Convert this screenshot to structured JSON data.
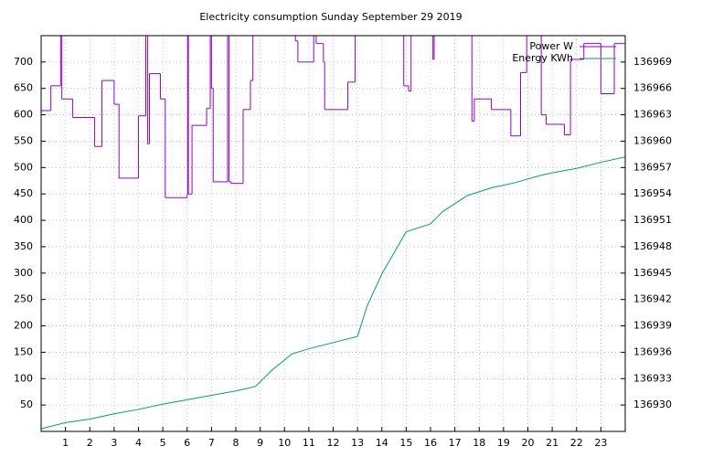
{
  "chart_data": {
    "type": "line",
    "title": "Electricity consumption Sunday September 29 2019",
    "xlim": [
      0,
      24
    ],
    "xticks": [
      1,
      2,
      3,
      4,
      5,
      6,
      7,
      8,
      9,
      10,
      11,
      12,
      13,
      14,
      15,
      16,
      17,
      18,
      19,
      20,
      21,
      22,
      23
    ],
    "ylim": [
      0,
      750
    ],
    "yticks": [
      50,
      100,
      150,
      200,
      250,
      300,
      350,
      400,
      450,
      500,
      550,
      600,
      650,
      700
    ],
    "y2lim": [
      136927,
      136972
    ],
    "y2ticks": [
      136930,
      136933,
      136936,
      136939,
      136942,
      136945,
      136948,
      136951,
      136954,
      136957,
      136960,
      136963,
      136966,
      136969
    ],
    "grid": true,
    "legend": "top-right",
    "series": [
      {
        "name": "Power W",
        "color": "#9400d3",
        "style": "steps",
        "x": [
          0,
          0.4,
          0.8,
          0.85,
          1.3,
          2.2,
          2.5,
          3.0,
          3.2,
          4.0,
          4.3,
          4.38,
          4.45,
          4.9,
          5.1,
          6.0,
          6.02,
          6.05,
          6.2,
          6.8,
          6.95,
          7.0,
          7.07,
          7.66,
          7.72,
          7.8,
          8.3,
          8.6,
          8.7,
          10.45,
          10.55,
          11.2,
          11.3,
          11.6,
          11.65,
          12.6,
          12.9,
          14.9,
          15.1,
          15.2,
          16.1,
          16.15,
          17.7,
          17.8,
          18.5,
          19.3,
          19.7,
          19.95,
          20.55,
          20.75,
          21.5,
          21.75,
          22.3,
          23.0,
          23.55
        ],
        "values": [
          608,
          655,
          780,
          630,
          595,
          540,
          665,
          620,
          480,
          598,
          780,
          545,
          678,
          630,
          443,
          450,
          780,
          450,
          580,
          612,
          780,
          650,
          473,
          780,
          473,
          470,
          610,
          665,
          780,
          740,
          700,
          780,
          735,
          700,
          610,
          662,
          780,
          655,
          645,
          780,
          705,
          780,
          588,
          630,
          610,
          560,
          680,
          780,
          600,
          582,
          562,
          705,
          735,
          640,
          735
        ]
      },
      {
        "name": "Energy KWh",
        "color": "#009e73",
        "axis": "y2",
        "x": [
          0,
          1,
          2,
          3,
          4,
          5,
          6,
          7,
          8,
          8.8,
          9.5,
          10.3,
          11,
          12,
          13,
          13.4,
          14,
          15,
          16,
          16.5,
          17.5,
          18.5,
          19.5,
          20.5,
          21,
          22,
          23,
          24
        ],
        "values": [
          136927.3,
          136928.0,
          136928.4,
          136929.0,
          136929.5,
          136930.1,
          136930.6,
          136931.1,
          136931.6,
          136932.1,
          136934.0,
          136935.8,
          136936.4,
          136937.1,
          136937.8,
          136941.3,
          136944.9,
          136949.7,
          136950.6,
          136952.0,
          136953.8,
          136954.7,
          136955.3,
          136956.1,
          136956.4,
          136956.9,
          136957.6,
          136958.2
        ]
      }
    ]
  }
}
